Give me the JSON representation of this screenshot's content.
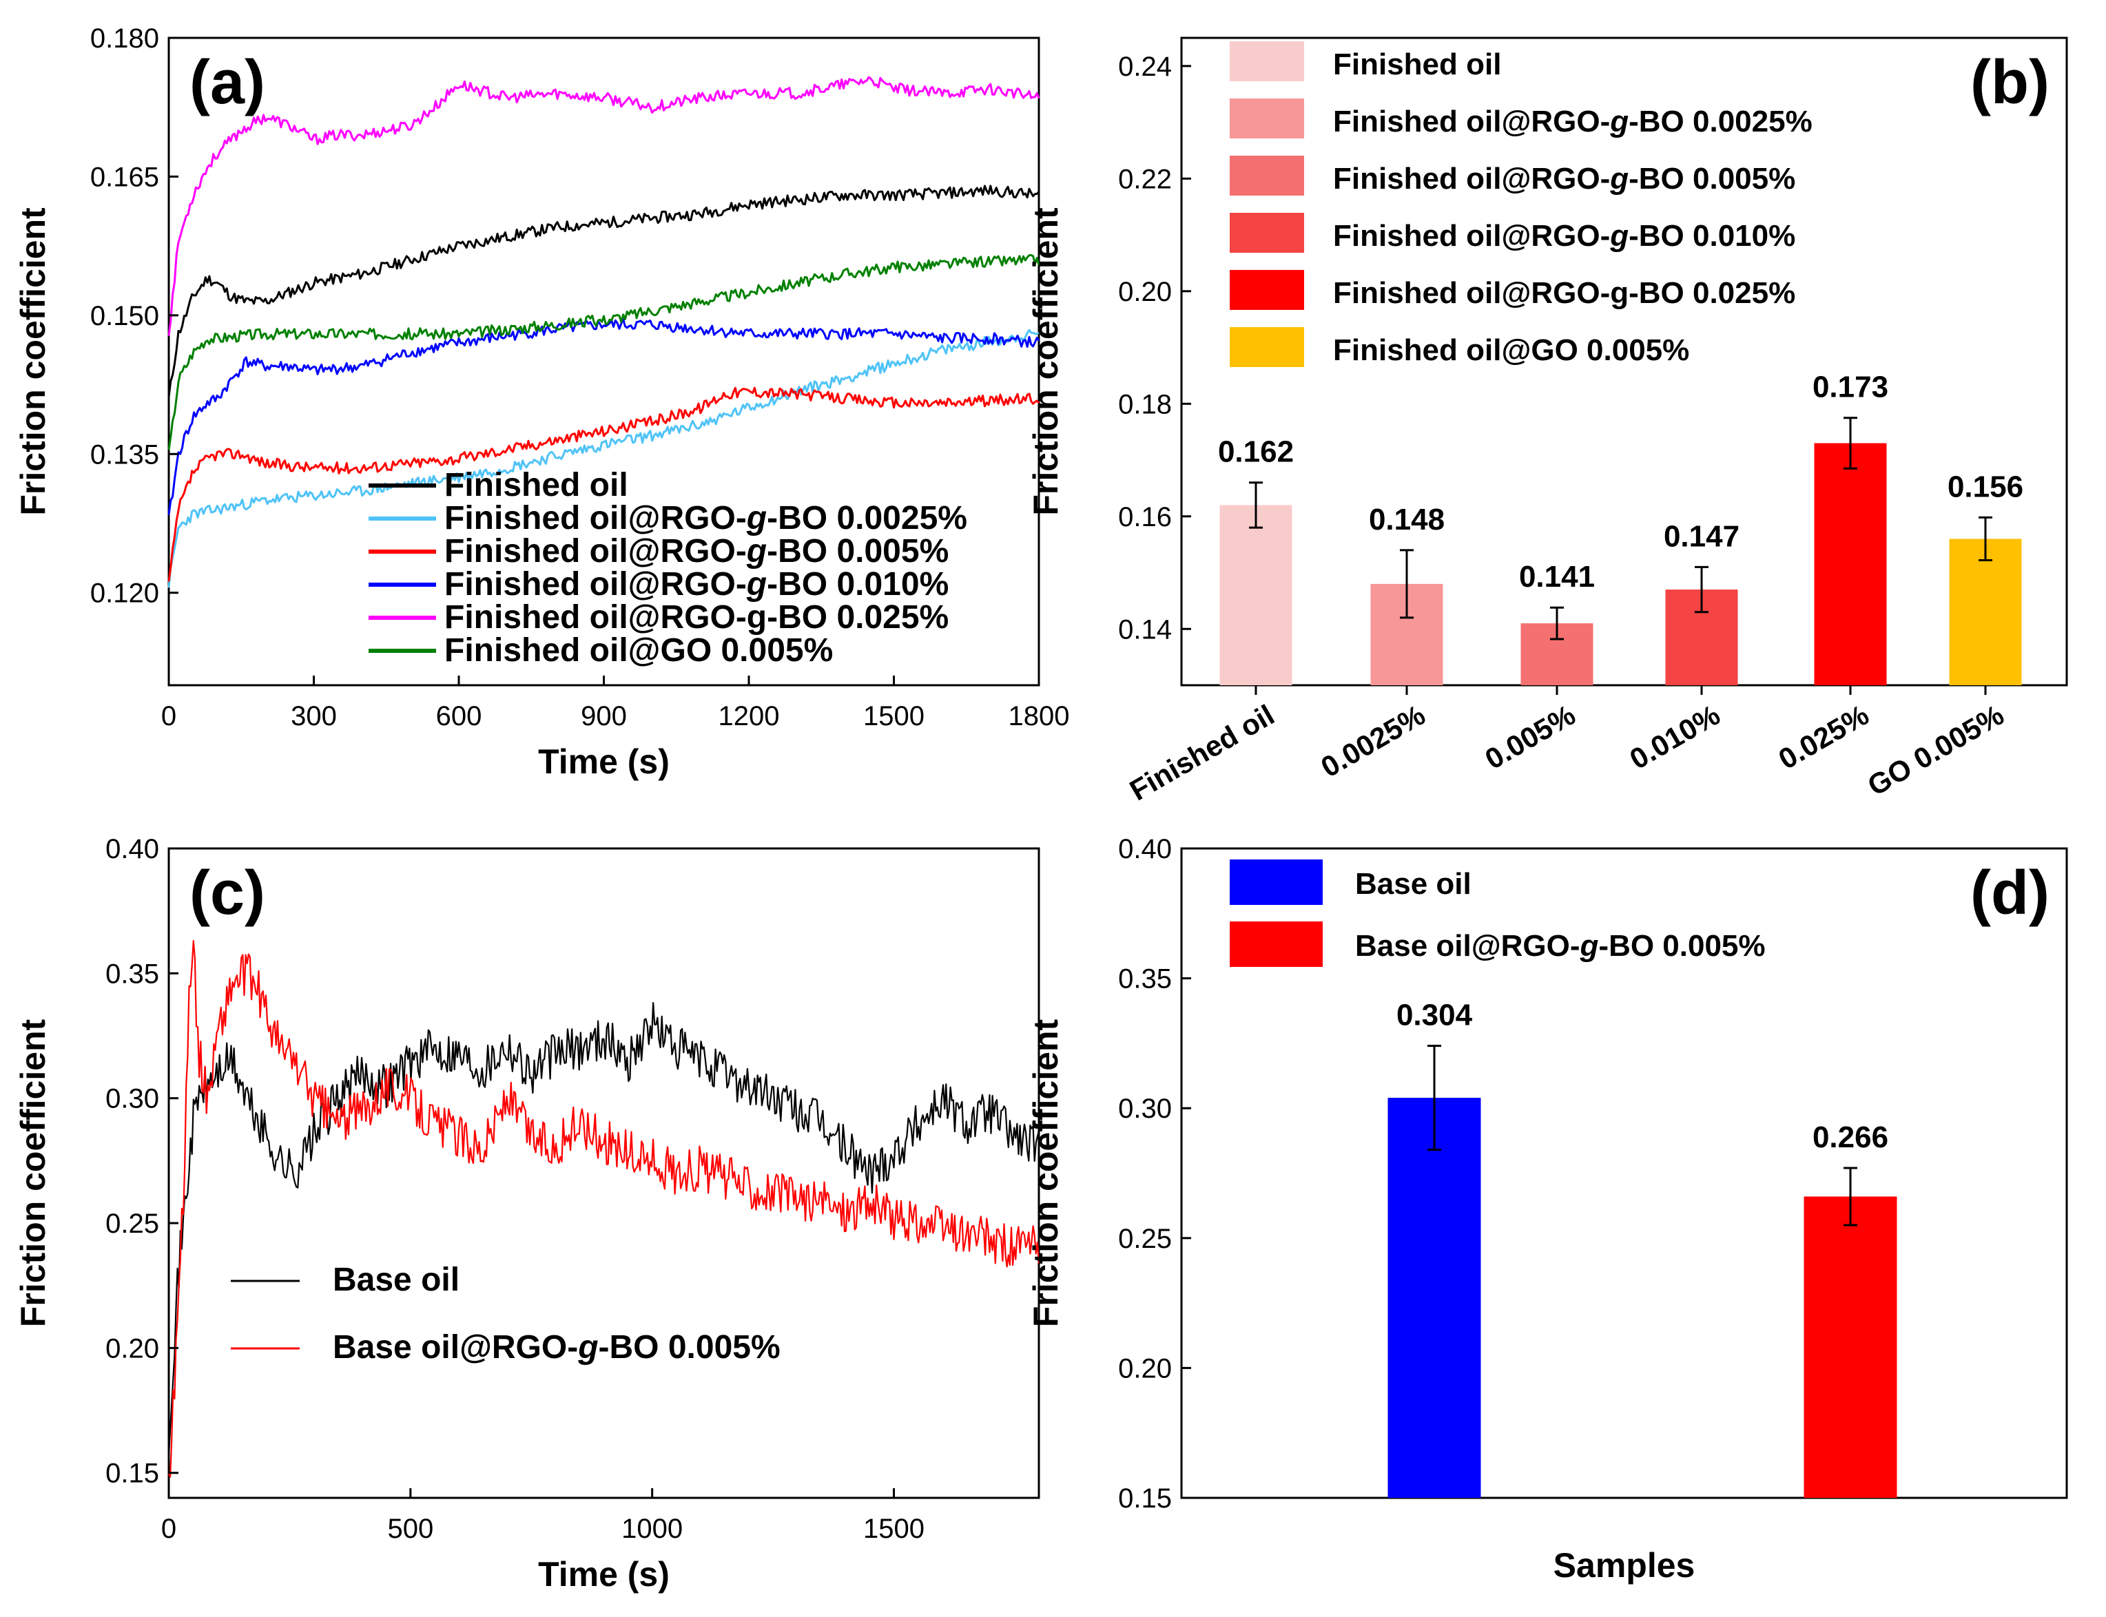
{
  "chart_data": [
    {
      "panel": "(a)",
      "type": "line",
      "xlabel": "Time (s)",
      "ylabel": "Friction coefficient",
      "xlim": [
        0,
        1800
      ],
      "ylim": [
        0.11,
        0.18
      ],
      "xticks": [
        0,
        300,
        600,
        900,
        1200,
        1500,
        1800
      ],
      "yticks": [
        0.12,
        0.135,
        0.15,
        0.165,
        0.18
      ],
      "ytick_labels": [
        "0.120",
        "0.135",
        "0.150",
        "0.165",
        "0.180"
      ],
      "legend_position": "bottom-right",
      "series": [
        {
          "name": "Finished oil",
          "label_parts": [
            "Finished oil"
          ],
          "color": "#000000",
          "x": [
            0,
            20,
            50,
            80,
            100,
            130,
            160,
            200,
            250,
            300,
            350,
            400,
            500,
            600,
            700,
            800,
            900,
            1000,
            1100,
            1200,
            1300,
            1400,
            1500,
            1600,
            1700,
            1800
          ],
          "y": [
            0.141,
            0.148,
            0.152,
            0.154,
            0.1535,
            0.152,
            0.1515,
            0.1515,
            0.1525,
            0.1535,
            0.154,
            0.1545,
            0.156,
            0.1575,
            0.1585,
            0.1595,
            0.16,
            0.1605,
            0.161,
            0.162,
            0.1625,
            0.163,
            0.163,
            0.1632,
            0.1635,
            0.163
          ]
        },
        {
          "name": "Finished oil@RGO-g-BO 0.0025%",
          "label_parts": [
            "Finished oil@RGO-",
            "g",
            "-BO 0.0025%"
          ],
          "color": "#4fc3f7",
          "x": [
            0,
            20,
            50,
            100,
            150,
            200,
            300,
            400,
            500,
            600,
            700,
            800,
            900,
            1000,
            1100,
            1200,
            1300,
            1400,
            1500,
            1600,
            1700,
            1800
          ],
          "y": [
            0.121,
            0.127,
            0.1285,
            0.129,
            0.1295,
            0.13,
            0.1305,
            0.131,
            0.1318,
            0.1325,
            0.1335,
            0.1348,
            0.136,
            0.137,
            0.1382,
            0.14,
            0.1418,
            0.1432,
            0.1448,
            0.1462,
            0.1472,
            0.148
          ]
        },
        {
          "name": "Finished oil@RGO-g-BO 0.005%",
          "label_parts": [
            "Finished oil@RGO-",
            "g",
            "-BO 0.005%"
          ],
          "color": "#ff0000",
          "x": [
            0,
            20,
            50,
            80,
            100,
            150,
            200,
            300,
            400,
            500,
            600,
            700,
            800,
            900,
            1000,
            1100,
            1150,
            1200,
            1300,
            1400,
            1500,
            1600,
            1700,
            1800
          ],
          "y": [
            0.121,
            0.129,
            0.133,
            0.1345,
            0.135,
            0.135,
            0.134,
            0.1335,
            0.1335,
            0.134,
            0.1345,
            0.1355,
            0.1365,
            0.1375,
            0.1385,
            0.14,
            0.1415,
            0.1418,
            0.1415,
            0.141,
            0.1405,
            0.1405,
            0.1408,
            0.141
          ]
        },
        {
          "name": "Finished oil@RGO-g-BO 0.010%",
          "label_parts": [
            "Finished oil@RGO-",
            "g",
            "-BO 0.010%"
          ],
          "color": "#0000ff",
          "x": [
            0,
            20,
            50,
            80,
            100,
            130,
            160,
            200,
            250,
            300,
            400,
            500,
            600,
            700,
            800,
            900,
            1000,
            1100,
            1200,
            1300,
            1400,
            1500,
            1600,
            1700,
            1800
          ],
          "y": [
            0.128,
            0.135,
            0.139,
            0.1405,
            0.141,
            0.143,
            0.145,
            0.1445,
            0.1445,
            0.144,
            0.1445,
            0.146,
            0.147,
            0.1478,
            0.1485,
            0.149,
            0.149,
            0.1485,
            0.148,
            0.148,
            0.148,
            0.148,
            0.1475,
            0.1475,
            0.147
          ]
        },
        {
          "name": "Finished oil@RGO-g-BO 0.025%",
          "label_parts": [
            "Finished oil@RGO-g-BO 0.025%"
          ],
          "color": "#ff00ff",
          "x": [
            0,
            20,
            50,
            80,
            100,
            150,
            200,
            250,
            300,
            350,
            400,
            500,
            550,
            600,
            700,
            800,
            900,
            1000,
            1100,
            1200,
            1300,
            1400,
            1450,
            1500,
            1600,
            1700,
            1800
          ],
          "y": [
            0.148,
            0.158,
            0.163,
            0.166,
            0.1675,
            0.17,
            0.1715,
            0.1705,
            0.169,
            0.1695,
            0.1695,
            0.1705,
            0.1725,
            0.175,
            0.1735,
            0.174,
            0.1735,
            0.1725,
            0.1735,
            0.174,
            0.174,
            0.175,
            0.1755,
            0.1745,
            0.174,
            0.1745,
            0.1735
          ]
        },
        {
          "name": "Finished oil@GO 0.005%",
          "label_parts": [
            "Finished oil@GO 0.005%"
          ],
          "color": "#008000",
          "x": [
            0,
            20,
            50,
            80,
            100,
            150,
            200,
            300,
            400,
            500,
            600,
            700,
            800,
            900,
            1000,
            1100,
            1200,
            1300,
            1400,
            1500,
            1600,
            1700,
            1800
          ],
          "y": [
            0.135,
            0.143,
            0.146,
            0.1475,
            0.1475,
            0.1478,
            0.148,
            0.148,
            0.148,
            0.148,
            0.148,
            0.1485,
            0.149,
            0.1495,
            0.1505,
            0.1515,
            0.1525,
            0.1535,
            0.1545,
            0.1552,
            0.1555,
            0.1558,
            0.156
          ]
        }
      ]
    },
    {
      "panel": "(b)",
      "type": "bar",
      "ylabel": "Friction coefficient",
      "ylim": [
        0.13,
        0.245
      ],
      "yticks": [
        0.14,
        0.16,
        0.18,
        0.2,
        0.22,
        0.24
      ],
      "ytick_labels": [
        "0.14",
        "0.16",
        "0.18",
        "0.20",
        "0.22",
        "0.24"
      ],
      "legend_position": "top-left",
      "categories": [
        "Finished oil",
        "0.0025%",
        "0.005%",
        "0.010%",
        "0.025%",
        "GO 0.005%"
      ],
      "values": [
        0.162,
        0.148,
        0.141,
        0.147,
        0.173,
        0.156
      ],
      "value_labels": [
        "0.162",
        "0.148",
        "0.141",
        "0.147",
        "0.173",
        "0.156"
      ],
      "errors": [
        0.004,
        0.006,
        0.0028,
        0.004,
        0.0045,
        0.0038
      ],
      "colors": [
        "#f9cccc",
        "#f79797",
        "#f57070",
        "#f44444",
        "#ff0000",
        "#ffc000"
      ],
      "legend": [
        [
          "Finished oil"
        ],
        [
          "Finished oil@RGO-",
          "g",
          "-BO 0.0025%"
        ],
        [
          "Finished oil@RGO-",
          "g",
          "-BO 0.005%"
        ],
        [
          "Finished oil@RGO-",
          "g",
          "-BO 0.010%"
        ],
        [
          "Finished oil@RGO-g-BO 0.025%"
        ],
        [
          "Finished oil@GO 0.005%"
        ]
      ]
    },
    {
      "panel": "(c)",
      "type": "line",
      "xlabel": "Time (s)",
      "ylabel": "Friction coefficient",
      "xlim": [
        0,
        1800
      ],
      "ylim": [
        0.14,
        0.4
      ],
      "xticks": [
        0,
        500,
        1000,
        1500
      ],
      "yticks": [
        0.15,
        0.2,
        0.25,
        0.3,
        0.35,
        0.4
      ],
      "ytick_labels": [
        "0.15",
        "0.20",
        "0.25",
        "0.30",
        "0.35",
        "0.40"
      ],
      "legend_position": "center-left",
      "series": [
        {
          "name": "Base oil",
          "label_parts": [
            "Base oil"
          ],
          "color": "#000000",
          "x": [
            0,
            10,
            20,
            30,
            40,
            50,
            60,
            80,
            100,
            130,
            160,
            200,
            230,
            260,
            300,
            350,
            400,
            450,
            500,
            550,
            600,
            650,
            700,
            750,
            800,
            850,
            900,
            950,
            1000,
            1050,
            1100,
            1150,
            1200,
            1250,
            1300,
            1350,
            1400,
            1450,
            1500,
            1550,
            1600,
            1650,
            1700,
            1750,
            1800
          ],
          "y": [
            0.165,
            0.2,
            0.23,
            0.25,
            0.27,
            0.29,
            0.3,
            0.305,
            0.31,
            0.315,
            0.3,
            0.285,
            0.275,
            0.27,
            0.285,
            0.3,
            0.31,
            0.305,
            0.315,
            0.32,
            0.318,
            0.312,
            0.322,
            0.31,
            0.318,
            0.32,
            0.325,
            0.315,
            0.33,
            0.32,
            0.315,
            0.31,
            0.305,
            0.3,
            0.295,
            0.29,
            0.28,
            0.27,
            0.278,
            0.29,
            0.3,
            0.29,
            0.295,
            0.285,
            0.28
          ]
        },
        {
          "name": "Base oil@RGO-g-BO 0.005%",
          "label_parts": [
            "Base oil@RGO-",
            "g",
            "-BO 0.005%"
          ],
          "color": "#ff0000",
          "x": [
            0,
            10,
            20,
            30,
            40,
            50,
            60,
            80,
            100,
            130,
            160,
            180,
            200,
            230,
            260,
            300,
            350,
            400,
            450,
            500,
            550,
            600,
            650,
            700,
            750,
            800,
            850,
            900,
            950,
            1000,
            1050,
            1100,
            1150,
            1200,
            1250,
            1300,
            1350,
            1400,
            1450,
            1500,
            1550,
            1600,
            1650,
            1700,
            1750,
            1800
          ],
          "y": [
            0.145,
            0.18,
            0.22,
            0.26,
            0.33,
            0.37,
            0.32,
            0.3,
            0.325,
            0.345,
            0.35,
            0.345,
            0.335,
            0.32,
            0.315,
            0.3,
            0.29,
            0.295,
            0.305,
            0.3,
            0.29,
            0.285,
            0.28,
            0.3,
            0.285,
            0.28,
            0.29,
            0.283,
            0.278,
            0.275,
            0.27,
            0.272,
            0.268,
            0.265,
            0.262,
            0.26,
            0.258,
            0.255,
            0.258,
            0.252,
            0.25,
            0.248,
            0.245,
            0.243,
            0.24,
            0.24
          ]
        }
      ]
    },
    {
      "panel": "(d)",
      "type": "bar",
      "xlabel": "Samples",
      "ylabel": "Friction coefficient",
      "ylim": [
        0.15,
        0.4
      ],
      "yticks": [
        0.15,
        0.2,
        0.25,
        0.3,
        0.35,
        0.4
      ],
      "ytick_labels": [
        "0.15",
        "0.20",
        "0.25",
        "0.30",
        "0.35",
        "0.40"
      ],
      "legend_position": "top-left",
      "categories": [
        "Base oil",
        "Base oil@RGO-g-BO 0.005%"
      ],
      "values": [
        0.304,
        0.266
      ],
      "value_labels": [
        "0.304",
        "0.266"
      ],
      "errors": [
        0.02,
        0.011
      ],
      "colors": [
        "#0000ff",
        "#ff0000"
      ],
      "legend": [
        [
          "Base oil"
        ],
        [
          "Base oil@RGO-",
          "g",
          "-BO 0.005%"
        ]
      ]
    }
  ]
}
